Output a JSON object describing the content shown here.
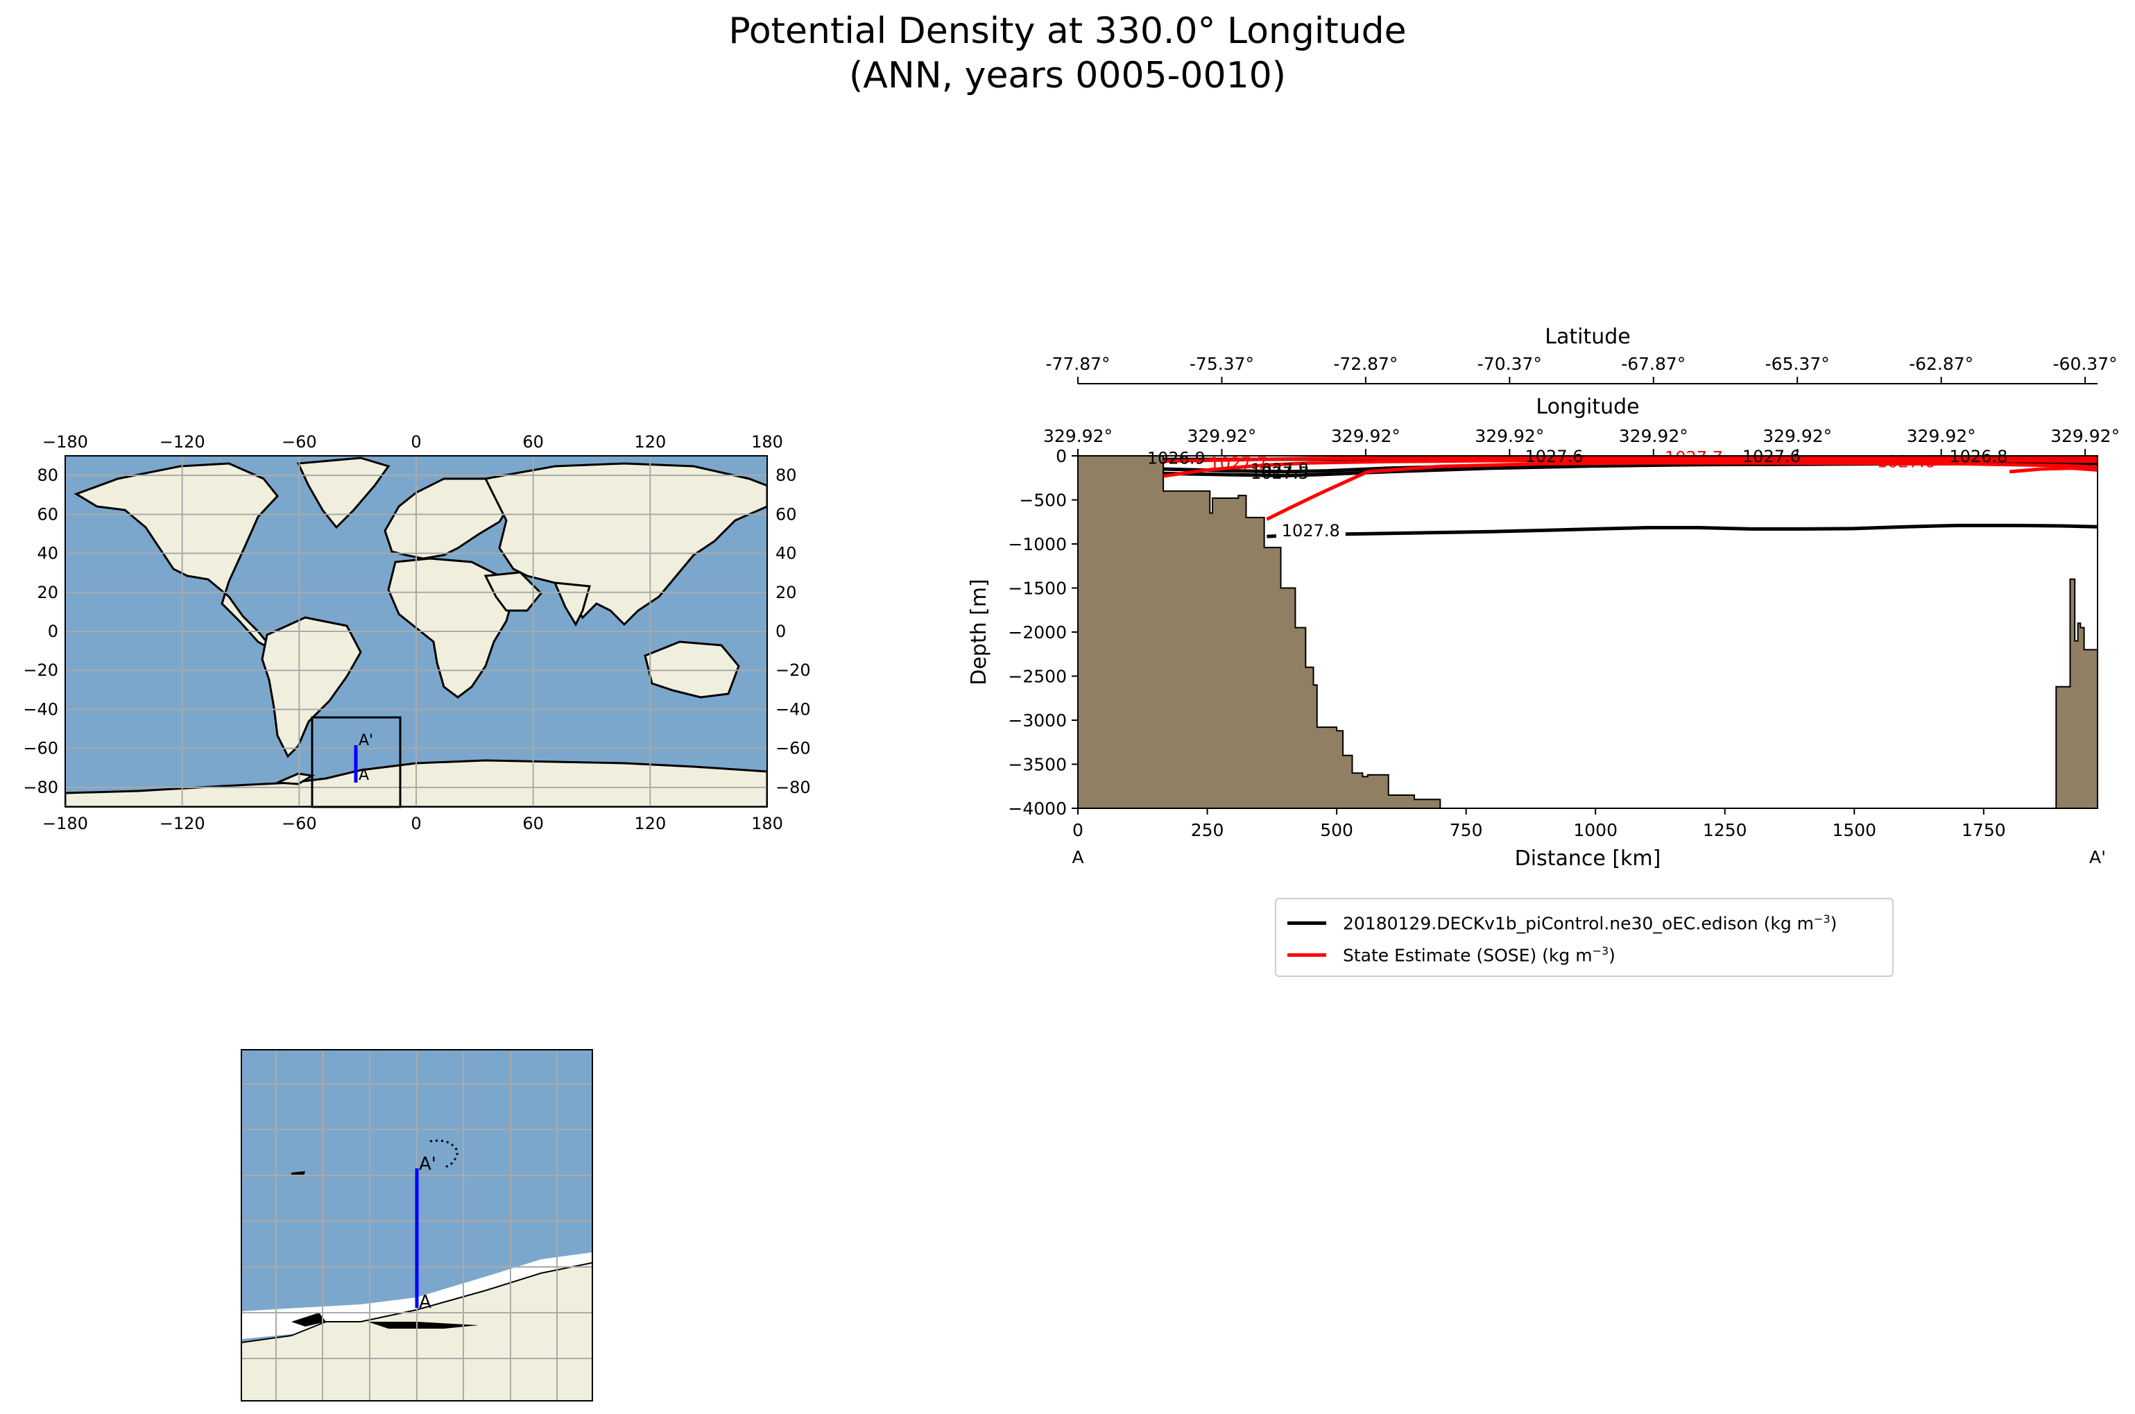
{
  "title": {
    "line1": "Potential Density at 330.0° Longitude",
    "line2": "(ANN, years 0005-0010)"
  },
  "colors": {
    "ocean": "#7ba7cc",
    "land": "#f0efdd",
    "topography": "#907f63",
    "model": "#000000",
    "obs": "#ff0000",
    "transect": "#0000ff",
    "grid": "#aaaaaa"
  },
  "world_map": {
    "lon_ticks": [
      "−180",
      "−120",
      "−60",
      "0",
      "60",
      "120",
      "180"
    ],
    "lat_ticks": [
      "80",
      "60",
      "40",
      "20",
      "0",
      "−20",
      "−40",
      "−60",
      "−80"
    ],
    "point_a": "A",
    "point_b": "A'"
  },
  "inset_map": {
    "point_a": "A",
    "point_b": "A'"
  },
  "chart_data": {
    "type": "line",
    "xlabel": "Distance [km]",
    "ylabel": "Depth [m]",
    "xlim": [
      0,
      1970
    ],
    "ylim": [
      -4000,
      0
    ],
    "x_ticks": [
      0,
      250,
      500,
      750,
      1000,
      1250,
      1500,
      1750
    ],
    "y_ticks": [
      0,
      -500,
      -1000,
      -1500,
      -2000,
      -2500,
      -3000,
      -3500,
      -4000
    ],
    "x_tick_labels": [
      "0",
      "250",
      "500",
      "750",
      "1000",
      "1250",
      "1500",
      "1750"
    ],
    "y_tick_labels": [
      "0",
      "−500",
      "−1000",
      "−1500",
      "−2000",
      "−2500",
      "−3000",
      "−3500",
      "−4000"
    ],
    "start_label": "A",
    "end_label": "A'",
    "latitude_axis": {
      "label": "Latitude",
      "tick_labels": [
        "-77.87°",
        "-75.37°",
        "-72.87°",
        "-70.37°",
        "-67.87°",
        "-65.37°",
        "-62.87°",
        "-60.37°"
      ],
      "tick_distances": [
        0,
        278,
        556,
        834,
        1112,
        1390,
        1668,
        1946
      ]
    },
    "longitude_axis": {
      "label": "Longitude",
      "tick_labels": [
        "329.92°",
        "329.92°",
        "329.92°",
        "329.92°",
        "329.92°",
        "329.92°",
        "329.92°",
        "329.92°"
      ],
      "tick_distances": [
        0,
        278,
        556,
        834,
        1112,
        1390,
        1668,
        1946
      ]
    },
    "bathymetry": {
      "distance": [
        0,
        165,
        165,
        255,
        255,
        260,
        260,
        310,
        310,
        325,
        325,
        360,
        360,
        392,
        392,
        420,
        420,
        440,
        440,
        455,
        455,
        462,
        462,
        500,
        500,
        512,
        512,
        530,
        530,
        550,
        550,
        560,
        560,
        600,
        600,
        650,
        650,
        700,
        700,
        1890,
        1890,
        1917,
        1917,
        1926,
        1926,
        1932,
        1932,
        1937,
        1937,
        1944,
        1944,
        1970
      ],
      "depth": [
        0,
        0,
        -400,
        -400,
        -650,
        -650,
        -480,
        -480,
        -450,
        -450,
        -700,
        -700,
        -1040,
        -1040,
        -1500,
        -1500,
        -1950,
        -1950,
        -2400,
        -2400,
        -2600,
        -2600,
        -3080,
        -3080,
        -3120,
        -3120,
        -3400,
        -3400,
        -3600,
        -3600,
        -3640,
        -3640,
        -3620,
        -3620,
        -3850,
        -3850,
        -3900,
        -3900,
        -4000,
        -4000,
        -2620,
        -2620,
        -1400,
        -1400,
        -2100,
        -2100,
        -1900,
        -1900,
        -1950,
        -1950,
        -2200,
        -2200
      ]
    },
    "series": [
      {
        "name": "20180129.DECKv1b_piControl.ne30_oEC.edison (kg m",
        "unit_sup": "−3",
        "unit_close": ")",
        "contours": [
          {
            "level": "1027.8",
            "distance": [
              365,
              400,
              500,
              600,
              700,
              800,
              900,
              1000,
              1100,
              1200,
              1300,
              1400,
              1500,
              1600,
              1700,
              1800,
              1900,
              1970
            ],
            "depth": [
              -915,
              -905,
              -890,
              -880,
              -870,
              -860,
              -845,
              -830,
              -815,
              -815,
              -830,
              -830,
              -825,
              -805,
              -790,
              -790,
              -795,
              -805
            ]
          },
          {
            "level": "",
            "distance": [
              165,
              300,
              400,
              480,
              600,
              800,
              1000,
              1200,
              1400,
              1600,
              1800,
              1970
            ],
            "depth": [
              -150,
              -170,
              -180,
              -170,
              -140,
              -110,
              -90,
              -80,
              -75,
              -72,
              -70,
              -70
            ]
          },
          {
            "level": "",
            "distance": [
              165,
              300,
              400,
              480,
              600,
              800,
              1000,
              1200,
              1400,
              1600,
              1800,
              1970
            ],
            "depth": [
              -200,
              -215,
              -225,
              -210,
              -180,
              -140,
              -115,
              -100,
              -95,
              -90,
              -88,
              -88
            ]
          },
          {
            "level": "",
            "distance": [
              165,
              300,
              400,
              500,
              700,
              900,
              1100,
              1300,
              1500,
              1700,
              1970
            ],
            "depth": [
              -40,
              -40,
              -38,
              -35,
              -30,
              -28,
              -26,
              -25,
              -25,
              -24,
              -24
            ]
          }
        ],
        "contour_labels": [
          {
            "text": "1027.8",
            "x": 450,
            "y": -880
          },
          {
            "text": "1027.9",
            "x": 390,
            "y": -190
          },
          {
            "text": "1027.5",
            "x": 390,
            "y": -230
          },
          {
            "text": "1026.9",
            "x": 190,
            "y": -60
          },
          {
            "text": "1027.6",
            "x": 920,
            "y": -40
          },
          {
            "text": "1027.6",
            "x": 1340,
            "y": -40
          },
          {
            "text": "1026.8",
            "x": 1740,
            "y": -40
          }
        ]
      },
      {
        "name": "State Estimate (SOSE) (kg m",
        "unit_sup": "−3",
        "unit_close": ")",
        "contours": [
          {
            "level": "",
            "distance": [
              365,
              410,
              470,
              560,
              700,
              900,
              1100,
              1300,
              1500,
              1700,
              1900,
              1970
            ],
            "depth": [
              -720,
              -590,
              -420,
              -180,
              -120,
              -90,
              -80,
              -80,
              -85,
              -90,
              -110,
              -130
            ]
          },
          {
            "level": "",
            "distance": [
              165,
              250,
              350,
              450,
              600,
              800,
              1000,
              1200,
              1400,
              1600,
              1800,
              1970
            ],
            "depth": [
              -230,
              -160,
              -110,
              -80,
              -65,
              -55,
              -50,
              -50,
              -50,
              -52,
              -55,
              -60
            ]
          },
          {
            "level": "",
            "distance": [
              165,
              300,
              450,
              650,
              900,
              1150,
              1400,
              1650,
              1900,
              1970
            ],
            "depth": [
              -60,
              -45,
              -30,
              -22,
              -18,
              -15,
              -15,
              -15,
              -18,
              -20
            ]
          },
          {
            "level": "",
            "distance": [
              1800,
              1860,
              1920,
              1970
            ],
            "depth": [
              -180,
              -150,
              -140,
              -160
            ]
          }
        ],
        "contour_labels": [
          {
            "text": "1027.7",
            "x": 310,
            "y": -120
          },
          {
            "text": "1027.7",
            "x": 1190,
            "y": -50
          },
          {
            "text": "1027.6",
            "x": 1600,
            "y": -100
          }
        ]
      }
    ],
    "legend_position": "lower-center"
  }
}
